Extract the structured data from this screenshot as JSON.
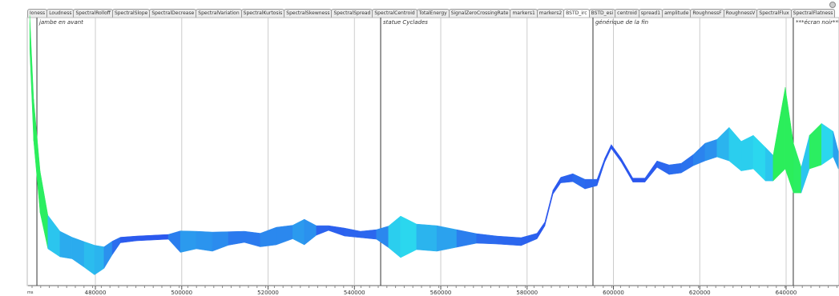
{
  "tabs": [
    "Ioness",
    "Loudness",
    "SpectralRolloff",
    "SpectralSlope",
    "SpectralDecrease",
    "SpectralVariation",
    "SpectralKurtosis",
    "SpectralSkewness",
    "SpectralSpread",
    "SpectralCentroid",
    "TotalEnergy",
    "SignalZeroCrossingRate",
    "markers1",
    "markers2",
    "BSTD_irc",
    "BSTD_esi",
    "centroid",
    "spread1",
    "amplitude",
    "RoughnessF",
    "RoughnessV",
    "SpectralFlux",
    "SpectralFlatness"
  ],
  "active_tab": 14,
  "chart_data": {
    "type": "band",
    "x_unit": "ms",
    "xlim": [
      464400,
      652250
    ],
    "xticks": [
      480000,
      500000,
      520000,
      540000,
      560000,
      580000,
      600000,
      620000,
      640000
    ],
    "ylim": [
      0,
      100
    ],
    "markers": [
      {
        "x": 466450,
        "label": "jambe en avant"
      },
      {
        "x": 546080,
        "label": "statue Cyclades"
      },
      {
        "x": 595260,
        "label": "générique de la fin"
      },
      {
        "x": 641660,
        "label": "***écran noir***"
      }
    ],
    "x": [
      464800,
      465700,
      467200,
      469000,
      471800,
      474600,
      477400,
      479800,
      482000,
      483900,
      485800,
      489500,
      493200,
      496900,
      499700,
      503400,
      507100,
      510800,
      514500,
      518200,
      521900,
      525700,
      528400,
      531200,
      534000,
      537700,
      541400,
      545100,
      547900,
      550700,
      554400,
      559100,
      563700,
      568300,
      573000,
      578600,
      582300,
      584100,
      586000,
      587800,
      590600,
      593400,
      596200,
      598000,
      599500,
      601800,
      604500,
      607300,
      610100,
      612900,
      615700,
      618500,
      621200,
      624000,
      626800,
      629600,
      632400,
      635200,
      637000,
      639800,
      641700,
      643500,
      645400,
      648200,
      650900,
      652100
    ],
    "series": [
      {
        "values": [
          94.5,
          61.5,
          34.5,
          19.5,
          15,
          13.5,
          11.1,
          9,
          9.9,
          13.5,
          16.5,
          17.1,
          17.4,
          17.7,
          15.9,
          16.5,
          15.9,
          17.1,
          17.7,
          16.5,
          18,
          19.5,
          19.5,
          20.1,
          21,
          19.5,
          18.6,
          18.6,
          17.7,
          17.7,
          17.7,
          17.1,
          17.1,
          17.1,
          16.5,
          15.9,
          18,
          22.5,
          34.5,
          39,
          39.9,
          37.5,
          38.1,
          46.5,
          51.6,
          46.5,
          39,
          39,
          45,
          42.9,
          43.5,
          46.5,
          49.5,
          51,
          52.5,
          48,
          49.5,
          45,
          43.5,
          58.5,
          43.5,
          39,
          49.5,
          52.5,
          52.5,
          46.5
        ],
        "spread": [
          12,
          15,
          15,
          12,
          9,
          7.5,
          9,
          10.5,
          7.5,
          4.5,
          1.5,
          1.2,
          1.2,
          1.2,
          7.5,
          6,
          6.6,
          4.5,
          3.6,
          4.5,
          6,
          4.5,
          9,
          3,
          1.2,
          2.4,
          1.8,
          3,
          7.5,
          15,
          9,
          9,
          6,
          3,
          2.4,
          2.4,
          1.5,
          0.9,
          0.9,
          1.5,
          2.4,
          3,
          1.8,
          0.9,
          0.9,
          0.9,
          0.9,
          0.9,
          1.8,
          3,
          3,
          3.6,
          6,
          6,
          12,
          10.5,
          12,
          12,
          9,
          30,
          18,
          9,
          12,
          15,
          9,
          6
        ]
      }
    ]
  }
}
